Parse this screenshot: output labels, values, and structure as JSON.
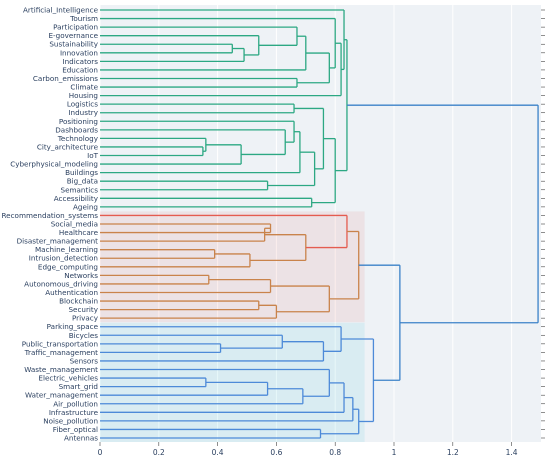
{
  "chart_data": {
    "type": "dendrogram",
    "orientation": "left",
    "title": "",
    "xlabel": "",
    "ylabel": "",
    "xlim": [
      0,
      1.5
    ],
    "x_ticks": [
      "0",
      "0.2",
      "0.4",
      "0.6",
      "0.8",
      "1",
      "1.2",
      "1.4"
    ],
    "tick_values": [
      0,
      0.2,
      0.4,
      0.6,
      0.8,
      1.0,
      1.2,
      1.4
    ],
    "plot_background": "#eef2f6",
    "grid": true,
    "cluster_colors": {
      "green": "#2ca883",
      "red": "#e45c50",
      "cyan": "#3fc4d6",
      "blue": "#4d8ad8",
      "root": "#3b82c8",
      "orange": "#c9834b"
    },
    "leaves": [
      "Artificial_Intelligence",
      "Tourism",
      "Participation",
      "E-governance",
      "Sustainability",
      "Innovation",
      "Indicators",
      "Education",
      "Carbon_emissions",
      "Climate",
      "Housing",
      "Logistics",
      "Industry",
      "Positioning",
      "Dashboards",
      "Technology",
      "City_architecture",
      "IoT",
      "Cyberphysical_modeling",
      "Buildings",
      "Big_data",
      "Semantics",
      "Accessibility",
      "Ageing",
      "Recommendation_systems",
      "Social_media",
      "Healthcare",
      "Disaster_management",
      "Machine_learning",
      "Intrusion_detection",
      "Edge_computing",
      "Networks",
      "Autonomous_driving",
      "Authentication",
      "Blockchain",
      "Security",
      "Privacy",
      "Parking_space",
      "Bicycles",
      "Public_transportation",
      "Traffic_management",
      "Sensors",
      "Waste_management",
      "Electric_vehicles",
      "Smart_grid",
      "Water_management",
      "Air_pollution",
      "Infrastructure",
      "Noise_pollution",
      "Fiber_optical",
      "Antennas"
    ],
    "merges": [
      {
        "id": "g1",
        "children": [
          "Sustainability",
          "Innovation"
        ],
        "height": 0.45,
        "color": "green"
      },
      {
        "id": "g2",
        "children": [
          "g1",
          "Indicators"
        ],
        "height": 0.49,
        "color": "green"
      },
      {
        "id": "g3",
        "children": [
          "E-governance",
          "g2"
        ],
        "height": 0.54,
        "color": "green"
      },
      {
        "id": "g4",
        "children": [
          "Participation",
          "g3"
        ],
        "height": 0.67,
        "color": "green"
      },
      {
        "id": "g5",
        "children": [
          "g4",
          "Education"
        ],
        "height": 0.7,
        "color": "green"
      },
      {
        "id": "g6",
        "children": [
          "Carbon_emissions",
          "Climate"
        ],
        "height": 0.67,
        "color": "green"
      },
      {
        "id": "g7",
        "children": [
          "g5",
          "g6"
        ],
        "height": 0.78,
        "color": "green"
      },
      {
        "id": "g8",
        "children": [
          "Tourism",
          "g7"
        ],
        "height": 0.8,
        "color": "green"
      },
      {
        "id": "g9",
        "children": [
          "g8",
          "Housing"
        ],
        "height": 0.82,
        "color": "green"
      },
      {
        "id": "g10",
        "children": [
          "Artificial_Intelligence",
          "g9"
        ],
        "height": 0.83,
        "color": "green"
      },
      {
        "id": "g11",
        "children": [
          "Logistics",
          "Industry"
        ],
        "height": 0.66,
        "color": "green"
      },
      {
        "id": "g12",
        "children": [
          "City_architecture",
          "IoT"
        ],
        "height": 0.35,
        "color": "green"
      },
      {
        "id": "g13",
        "children": [
          "Technology",
          "g12"
        ],
        "height": 0.36,
        "color": "green"
      },
      {
        "id": "g14",
        "children": [
          "g13",
          "Cyberphysical_modeling"
        ],
        "height": 0.48,
        "color": "green"
      },
      {
        "id": "g15",
        "children": [
          "Dashboards",
          "g14"
        ],
        "height": 0.63,
        "color": "green"
      },
      {
        "id": "g16",
        "children": [
          "Positioning",
          "g15"
        ],
        "height": 0.66,
        "color": "green"
      },
      {
        "id": "g17",
        "children": [
          "g16",
          "Buildings"
        ],
        "height": 0.68,
        "color": "green"
      },
      {
        "id": "g18",
        "children": [
          "Big_data",
          "Semantics"
        ],
        "height": 0.57,
        "color": "green"
      },
      {
        "id": "g19",
        "children": [
          "g17",
          "g18"
        ],
        "height": 0.73,
        "color": "green"
      },
      {
        "id": "g20",
        "children": [
          "g11",
          "g19"
        ],
        "height": 0.76,
        "color": "green"
      },
      {
        "id": "g21",
        "children": [
          "Accessibility",
          "Ageing"
        ],
        "height": 0.72,
        "color": "green"
      },
      {
        "id": "g22",
        "children": [
          "g20",
          "g21"
        ],
        "height": 0.8,
        "color": "green"
      },
      {
        "id": "g23",
        "children": [
          "g10",
          "g22"
        ],
        "height": 0.84,
        "color": "green"
      },
      {
        "id": "r1",
        "children": [
          "Social_media",
          "Healthcare"
        ],
        "height": 0.58,
        "color": "orange"
      },
      {
        "id": "r2",
        "children": [
          "r1",
          "Disaster_management"
        ],
        "height": 0.56,
        "color": "orange"
      },
      {
        "id": "r3",
        "children": [
          "Machine_learning",
          "Intrusion_detection"
        ],
        "height": 0.39,
        "color": "orange"
      },
      {
        "id": "r4",
        "children": [
          "r3",
          "Edge_computing"
        ],
        "height": 0.51,
        "color": "orange"
      },
      {
        "id": "r5",
        "children": [
          "r2",
          "r4"
        ],
        "height": 0.7,
        "color": "orange"
      },
      {
        "id": "r6",
        "children": [
          "Recommendation_systems",
          "r5"
        ],
        "height": 0.84,
        "color": "red"
      },
      {
        "id": "r7",
        "children": [
          "Networks",
          "Autonomous_driving"
        ],
        "height": 0.37,
        "color": "orange"
      },
      {
        "id": "r8",
        "children": [
          "r7",
          "Authentication"
        ],
        "height": 0.58,
        "color": "orange"
      },
      {
        "id": "r9",
        "children": [
          "Blockchain",
          "Security"
        ],
        "height": 0.54,
        "color": "orange"
      },
      {
        "id": "r10",
        "children": [
          "r9",
          "Privacy"
        ],
        "height": 0.6,
        "color": "orange"
      },
      {
        "id": "r11",
        "children": [
          "r8",
          "r10"
        ],
        "height": 0.78,
        "color": "orange"
      },
      {
        "id": "r12",
        "children": [
          "r6",
          "r11"
        ],
        "height": 0.88,
        "color": "orange"
      },
      {
        "id": "c1",
        "children": [
          "Public_transportation",
          "Traffic_management"
        ],
        "height": 0.41,
        "color": "blue"
      },
      {
        "id": "c2",
        "children": [
          "Bicycles",
          "c1"
        ],
        "height": 0.62,
        "color": "blue"
      },
      {
        "id": "c3",
        "children": [
          "c2",
          "Sensors"
        ],
        "height": 0.76,
        "color": "blue"
      },
      {
        "id": "c4",
        "children": [
          "Parking_space",
          "c3"
        ],
        "height": 0.82,
        "color": "blue"
      },
      {
        "id": "c5",
        "children": [
          "Electric_vehicles",
          "Smart_grid"
        ],
        "height": 0.36,
        "color": "blue"
      },
      {
        "id": "c6",
        "children": [
          "c5",
          "Water_management"
        ],
        "height": 0.57,
        "color": "blue"
      },
      {
        "id": "c7",
        "children": [
          "c6",
          "Air_pollution"
        ],
        "height": 0.69,
        "color": "blue"
      },
      {
        "id": "c8",
        "children": [
          "Waste_management",
          "c7"
        ],
        "height": 0.78,
        "color": "blue"
      },
      {
        "id": "c9",
        "children": [
          "c8",
          "Infrastructure"
        ],
        "height": 0.83,
        "color": "blue"
      },
      {
        "id": "c10",
        "children": [
          "c9",
          "Noise_pollution"
        ],
        "height": 0.86,
        "color": "blue"
      },
      {
        "id": "c11",
        "children": [
          "Fiber_optical",
          "Antennas"
        ],
        "height": 0.75,
        "color": "blue"
      },
      {
        "id": "c12",
        "children": [
          "c10",
          "c11"
        ],
        "height": 0.88,
        "color": "blue"
      },
      {
        "id": "c13",
        "children": [
          "c4",
          "c12"
        ],
        "height": 0.93,
        "color": "blue"
      },
      {
        "id": "b1",
        "children": [
          "r12",
          "c13"
        ],
        "height": 1.02,
        "color": "root"
      },
      {
        "id": "root",
        "children": [
          "g23",
          "b1"
        ],
        "height": 1.49,
        "color": "root"
      }
    ]
  }
}
